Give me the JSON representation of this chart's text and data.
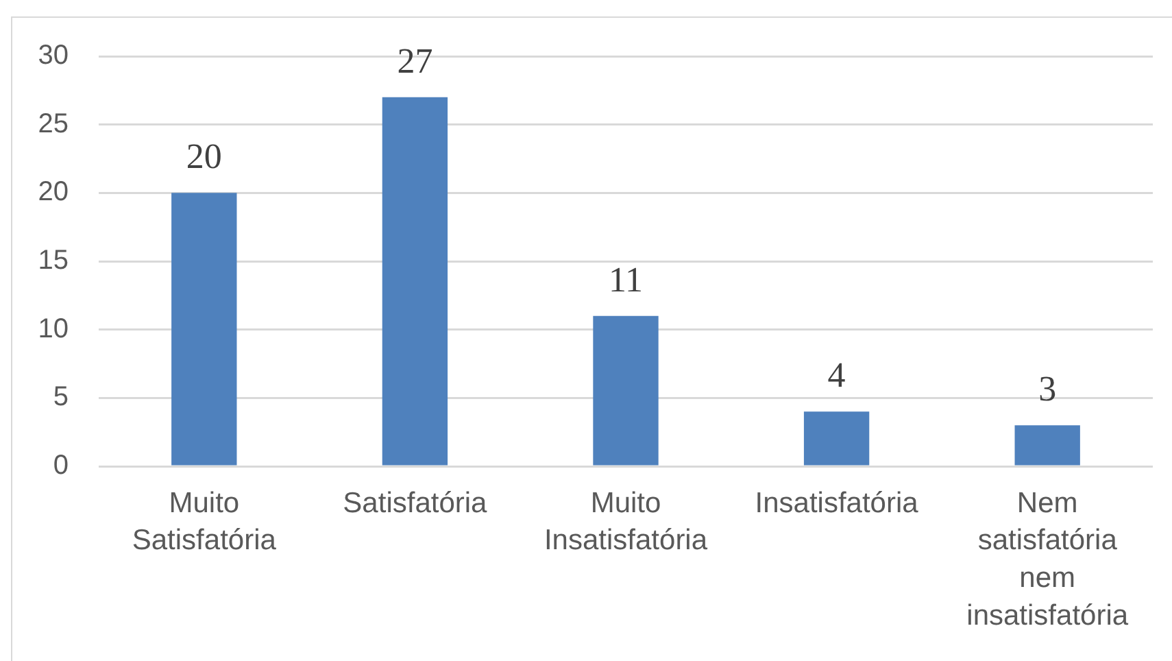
{
  "chart_data": {
    "type": "bar",
    "categories": [
      "Muito Satisfatória",
      "Satisfatória",
      "Muito Insatisfatória",
      "Insatisfatória",
      "Nem satisfatória nem insatisfatória"
    ],
    "values": [
      20,
      27,
      11,
      4,
      3
    ],
    "color": "#4f81bd",
    "ylim": [
      0,
      30
    ],
    "yticks": [
      0,
      5,
      10,
      15,
      20,
      25,
      30
    ],
    "grid": "y",
    "data_labels": true
  }
}
